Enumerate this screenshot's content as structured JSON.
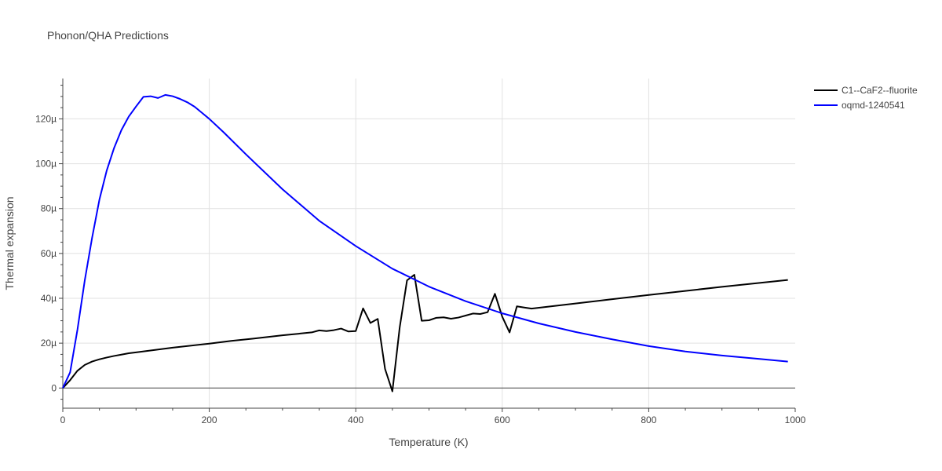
{
  "chart_data": {
    "type": "line",
    "title": "Phonon/QHA Predictions",
    "xlabel": "Temperature (K)",
    "ylabel": "Thermal expansion",
    "xlim": [
      0,
      1000
    ],
    "ylim": [
      -9,
      138
    ],
    "x_ticks": [
      0,
      200,
      400,
      600,
      800,
      1000
    ],
    "x_tick_labels": [
      "0",
      "200",
      "400",
      "600",
      "800",
      "1000"
    ],
    "y_ticks": [
      0,
      20,
      40,
      60,
      80,
      100,
      120
    ],
    "y_tick_labels": [
      "0",
      "20µ",
      "40µ",
      "60µ",
      "80µ",
      "100µ",
      "120µ"
    ],
    "grid": true,
    "legend_position": "top-right",
    "series": [
      {
        "name": "C1--CaF2--fluorite",
        "color": "#000000",
        "x": [
          0,
          10,
          20,
          30,
          40,
          50,
          60,
          70,
          80,
          90,
          100,
          150,
          200,
          230,
          260,
          300,
          340,
          350,
          360,
          370,
          380,
          390,
          400,
          410,
          420,
          430,
          440,
          450,
          460,
          470,
          480,
          490,
          500,
          510,
          520,
          530,
          540,
          550,
          560,
          570,
          580,
          590,
          600,
          610,
          620,
          630,
          640,
          700,
          800,
          900,
          990
        ],
        "y": [
          0,
          3.5,
          7.7,
          10.3,
          11.8,
          12.8,
          13.6,
          14.3,
          14.9,
          15.5,
          15.9,
          18.0,
          19.8,
          21.0,
          22.0,
          23.5,
          24.8,
          25.7,
          25.4,
          25.8,
          26.5,
          25.2,
          25.4,
          35.5,
          29.0,
          30.8,
          8.5,
          -1.5,
          27.0,
          48.0,
          50.5,
          30.0,
          30.2,
          31.3,
          31.5,
          30.9,
          31.4,
          32.3,
          33.2,
          33.0,
          33.8,
          42.0,
          31.8,
          24.8,
          36.4,
          35.9,
          35.4,
          37.7,
          41.5,
          45.1,
          48.2
        ]
      },
      {
        "name": "oqmd-1240541",
        "color": "#0000ff",
        "x": [
          0,
          10,
          20,
          30,
          40,
          50,
          60,
          70,
          80,
          90,
          100,
          110,
          120,
          130,
          140,
          150,
          160,
          170,
          180,
          200,
          220,
          250,
          300,
          350,
          400,
          450,
          500,
          550,
          600,
          650,
          700,
          750,
          800,
          850,
          900,
          950,
          990
        ],
        "y": [
          0,
          7,
          26,
          48,
          67,
          84,
          97,
          107,
          115,
          121,
          125.5,
          129.8,
          130.1,
          129.3,
          130.7,
          130.1,
          128.9,
          127.4,
          125.4,
          120.0,
          113.9,
          104.2,
          88.6,
          74.6,
          63.3,
          53.2,
          45.2,
          38.7,
          33.3,
          28.8,
          25.0,
          21.7,
          18.7,
          16.3,
          14.5,
          13.0,
          11.8
        ]
      }
    ]
  }
}
